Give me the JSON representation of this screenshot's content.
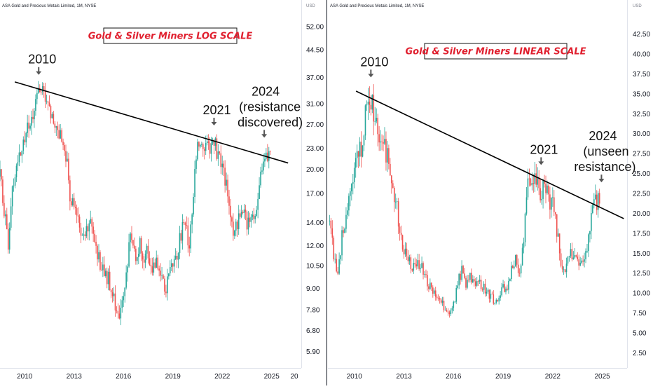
{
  "chart_data": [
    {
      "type": "candlestick",
      "symbol_label": "ASA Gold and Precious Metals Limited, 1M, NYSE",
      "title_box": "Gold & Silver Miners LOG SCALE",
      "scale": "log",
      "y_unit": "USD",
      "y_ticks": [
        "52.00",
        "44.50",
        "37.00",
        "31.00",
        "27.00",
        "23.00",
        "20.00",
        "17.00",
        "14.00",
        "12.00",
        "10.50",
        "9.00",
        "7.80",
        "6.80",
        "5.90"
      ],
      "x_ticks": [
        "2010",
        "2013",
        "2016",
        "2019",
        "2022",
        "2025",
        "20"
      ],
      "ylim": [
        5.4,
        58
      ],
      "xlim": [
        2008.5,
        2026.8
      ],
      "colors": {
        "up": "#26a69a",
        "down": "#ef5350",
        "trendline": "#000000"
      },
      "trendline": {
        "from": {
          "x": 2009.4,
          "y": 35.8
        },
        "to": {
          "x": 2026.0,
          "y": 20.8
        }
      },
      "annotations": [
        {
          "label": "2010",
          "x": 2010.85,
          "y": 36.5
        },
        {
          "label": "2021",
          "x": 2021.5,
          "y": 26.0
        },
        {
          "label": "2024",
          "x": 2024.55,
          "y": 23.3
        },
        {
          "label": "(resistance",
          "x": 2024.55,
          "y": 23.3
        },
        {
          "label": "discovered)",
          "x": 2024.55,
          "y": 23.3
        }
      ],
      "grid": false,
      "legend": "none",
      "series": [
        {
          "kind": "ohlc_close",
          "x": [
            2008.5,
            2008.75,
            2009.0,
            2009.25,
            2009.5,
            2009.75,
            2010.0,
            2010.25,
            2010.5,
            2010.75,
            2011.0,
            2011.25,
            2011.5,
            2011.75,
            2012.0,
            2012.25,
            2012.5,
            2012.75,
            2013.0,
            2013.25,
            2013.5,
            2013.75,
            2014.0,
            2014.25,
            2014.5,
            2014.75,
            2015.0,
            2015.25,
            2015.5,
            2015.75,
            2016.0,
            2016.25,
            2016.5,
            2016.75,
            2017.0,
            2017.25,
            2017.5,
            2017.75,
            2018.0,
            2018.25,
            2018.5,
            2018.75,
            2019.0,
            2019.25,
            2019.5,
            2019.75,
            2020.0,
            2020.25,
            2020.5,
            2020.75,
            2021.0,
            2021.25,
            2021.5,
            2021.75,
            2022.0,
            2022.25,
            2022.5,
            2022.75,
            2023.0,
            2023.25,
            2023.5,
            2023.75,
            2024.0,
            2024.25,
            2024.5,
            2024.75
          ],
          "close": [
            19,
            15,
            12,
            17,
            20,
            23,
            25,
            27,
            29,
            33,
            34,
            31,
            29,
            28,
            27,
            24,
            22,
            17,
            15,
            14,
            13,
            13.5,
            13.5,
            12,
            11,
            10,
            9.8,
            9,
            7.8,
            7,
            8.5,
            11,
            13,
            11,
            12,
            11,
            11.5,
            10.5,
            10.5,
            9.5,
            9,
            9.5,
            10.5,
            11,
            13,
            14,
            12,
            17,
            23,
            24,
            24,
            22,
            24,
            22,
            21,
            18,
            14,
            12.5,
            15,
            15,
            14,
            14,
            15,
            18,
            21,
            22
          ]
        }
      ]
    },
    {
      "type": "candlestick",
      "symbol_label": "ASA Gold and Precious Metals Limited, 1M, NYSE",
      "title_box": "Gold & Silver Miners LINEAR SCALE",
      "scale": "linear",
      "y_unit": "USD",
      "y_ticks": [
        "42.50",
        "40.00",
        "37.50",
        "35.00",
        "32.50",
        "30.00",
        "27.50",
        "25.00",
        "22.50",
        "20.00",
        "17.50",
        "15.00",
        "12.50",
        "10.00",
        "7.50",
        "5.00",
        "2.50"
      ],
      "x_ticks": [
        "2010",
        "2013",
        "2016",
        "2019",
        "2022",
        "2025"
      ],
      "ylim": [
        1.0,
        45.5
      ],
      "xlim": [
        2008.4,
        2026.5
      ],
      "colors": {
        "up": "#26a69a",
        "down": "#ef5350",
        "trendline": "#000000"
      },
      "trendline": {
        "from": {
          "x": 2010.1,
          "y": 35.3
        },
        "to": {
          "x": 2026.3,
          "y": 19.3
        }
      },
      "annotations": [
        {
          "label": "2010",
          "x": 2011.0,
          "y": 36.5
        },
        {
          "label": "2021",
          "x": 2021.3,
          "y": 25.5
        },
        {
          "label": "2024",
          "x": 2024.95,
          "y": 22.8
        },
        {
          "label": "(unseen",
          "x": 2024.95,
          "y": 22.8
        },
        {
          "label": "resistance)",
          "x": 2024.95,
          "y": 22.8
        }
      ],
      "grid": false,
      "legend": "none",
      "series": [
        {
          "kind": "ohlc_close",
          "x": [
            2008.5,
            2008.75,
            2009.0,
            2009.25,
            2009.5,
            2009.75,
            2010.0,
            2010.25,
            2010.5,
            2010.75,
            2011.0,
            2011.25,
            2011.5,
            2011.75,
            2012.0,
            2012.25,
            2012.5,
            2012.75,
            2013.0,
            2013.25,
            2013.5,
            2013.75,
            2014.0,
            2014.25,
            2014.5,
            2014.75,
            2015.0,
            2015.25,
            2015.5,
            2015.75,
            2016.0,
            2016.25,
            2016.5,
            2016.75,
            2017.0,
            2017.25,
            2017.5,
            2017.75,
            2018.0,
            2018.25,
            2018.5,
            2018.75,
            2019.0,
            2019.25,
            2019.5,
            2019.75,
            2020.0,
            2020.25,
            2020.5,
            2020.75,
            2021.0,
            2021.25,
            2021.5,
            2021.75,
            2022.0,
            2022.25,
            2022.5,
            2022.75,
            2023.0,
            2023.25,
            2023.5,
            2023.75,
            2024.0,
            2024.25,
            2024.5,
            2024.75
          ],
          "close": [
            19,
            15,
            12,
            17,
            20,
            23,
            25,
            27,
            29,
            33,
            34,
            31,
            29,
            28,
            27,
            24,
            22,
            17,
            15,
            14,
            13,
            13.5,
            13.5,
            12,
            11,
            10,
            9.8,
            9,
            7.8,
            7,
            8.5,
            11,
            13,
            11,
            12,
            11,
            11.5,
            10.5,
            10.5,
            9.5,
            9,
            9.5,
            10.5,
            11,
            13,
            14,
            12,
            17,
            23,
            24,
            24,
            22,
            24,
            22,
            21,
            18,
            14,
            12.5,
            15,
            15,
            14,
            14,
            15,
            18,
            21,
            22
          ]
        }
      ]
    }
  ]
}
